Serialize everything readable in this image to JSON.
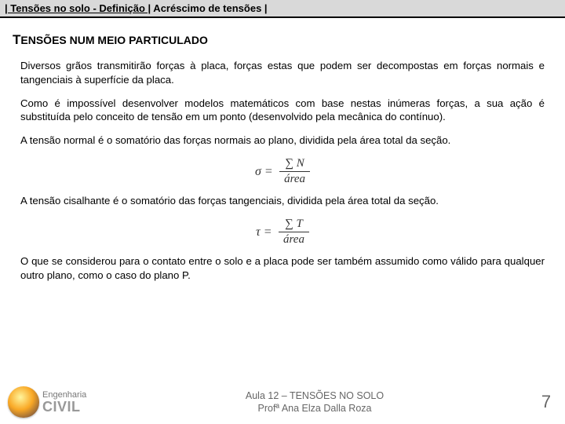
{
  "header": {
    "part1": "| Tensões no solo  - Definição |",
    "part2": " Acréscimo de tensões |"
  },
  "section_title_prefix": "T",
  "section_title_rest": "ENSÕES NUM MEIO PARTICULADO",
  "paragraphs": {
    "p1": "Diversos grãos transmitirão forças à placa, forças estas que podem ser decompostas em forças normais e tangenciais à superfície da placa.",
    "p2": "Como é impossível desenvolver modelos matemáticos com base nestas inúmeras forças, a sua ação é substituída pelo conceito de tensão em um ponto (desenvolvido pela mecânica do contínuo).",
    "p3": "A tensão normal é o somatório das forças normais ao plano, dividida pela área total da seção.",
    "p4": "A tensão cisalhante é o somatório das forças tangenciais, dividida pela área total da seção.",
    "p5": "O que se considerou para o contato entre o solo e a placa pode ser também assumido como válido para qualquer outro plano, como o caso do plano P."
  },
  "formula1": {
    "lhs": "σ =",
    "num": "∑ N",
    "den": "área"
  },
  "formula2": {
    "lhs": "τ =",
    "num": "∑ T",
    "den": "área"
  },
  "footer": {
    "logo_top": "Engenharia",
    "logo_main": "CIVIL",
    "line1": "Aula 12 – TENSÕES NO SOLO",
    "line2": "Profª Ana Elza  Dalla Roza",
    "page": "7"
  },
  "colors": {
    "header_bg": "#d9d9d9",
    "text": "#000000",
    "footer_text": "#666666"
  }
}
